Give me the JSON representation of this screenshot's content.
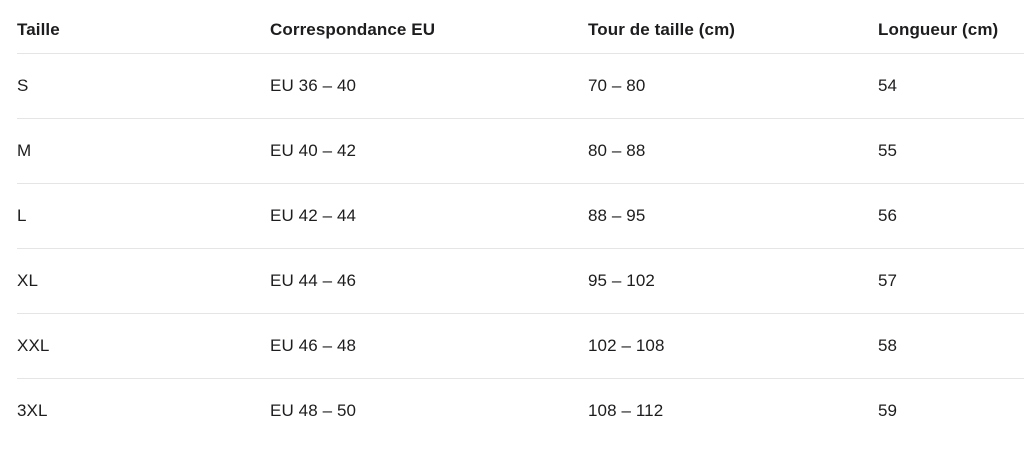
{
  "table": {
    "columns": [
      {
        "label": "Taille"
      },
      {
        "label": "Correspondance EU"
      },
      {
        "label": "Tour de taille (cm)"
      },
      {
        "label": "Longueur (cm)"
      }
    ],
    "rows": [
      {
        "taille": "S",
        "eu": "EU 36 – 40",
        "tour": "70 – 80",
        "longueur": "54"
      },
      {
        "taille": "M",
        "eu": "EU 40 – 42",
        "tour": "80 – 88",
        "longueur": "55"
      },
      {
        "taille": "L",
        "eu": "EU 42 – 44",
        "tour": "88 – 95",
        "longueur": "56"
      },
      {
        "taille": "XL",
        "eu": "EU 44 – 46",
        "tour": "95 – 102",
        "longueur": "57"
      },
      {
        "taille": "XXL",
        "eu": "EU 46 – 48",
        "tour": "102 – 108",
        "longueur": "58"
      },
      {
        "taille": "3XL",
        "eu": "EU 48 – 50",
        "tour": "108 – 112",
        "longueur": "59"
      }
    ]
  },
  "chart_data": {
    "type": "table",
    "title": "",
    "columns": [
      "Taille",
      "Correspondance EU",
      "Tour de taille (cm)",
      "Longueur (cm)"
    ],
    "rows": [
      [
        "S",
        "EU 36 – 40",
        "70 – 80",
        "54"
      ],
      [
        "M",
        "EU 40 – 42",
        "80 – 88",
        "55"
      ],
      [
        "L",
        "EU 42 – 44",
        "88 – 95",
        "56"
      ],
      [
        "XL",
        "EU 44 – 46",
        "95 – 102",
        "57"
      ],
      [
        "XXL",
        "EU 46 – 48",
        "102 – 108",
        "58"
      ],
      [
        "3XL",
        "EU 48 – 50",
        "108 – 112",
        "59"
      ]
    ],
    "tour_de_taille_cm": {
      "S": [
        70,
        80
      ],
      "M": [
        80,
        88
      ],
      "L": [
        88,
        95
      ],
      "XL": [
        95,
        102
      ],
      "XXL": [
        102,
        108
      ],
      "3XL": [
        108,
        112
      ]
    },
    "longueur_cm": {
      "S": 54,
      "M": 55,
      "L": 56,
      "XL": 57,
      "XXL": 58,
      "3XL": 59
    },
    "correspondance_eu": {
      "S": [
        36,
        40
      ],
      "M": [
        40,
        42
      ],
      "L": [
        42,
        44
      ],
      "XL": [
        44,
        46
      ],
      "XXL": [
        46,
        48
      ],
      "3XL": [
        48,
        50
      ]
    }
  },
  "colors": {
    "text": "#1d1d1f",
    "divider": "#e5e5e5",
    "background": "#ffffff"
  }
}
